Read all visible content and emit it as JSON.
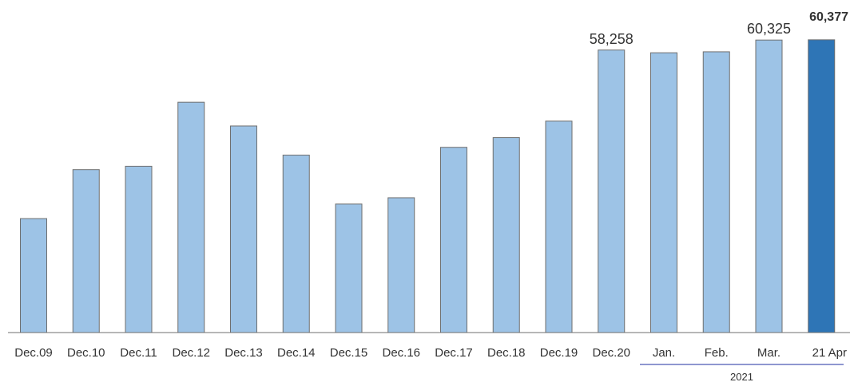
{
  "chart_data": {
    "type": "bar",
    "categories": [
      "Dec.09",
      "Dec.10",
      "Dec.11",
      "Dec.12",
      "Dec.13",
      "Dec.14",
      "Dec.15",
      "Dec.16",
      "Dec.17",
      "Dec.18",
      "Dec.19",
      "Dec.20",
      "Jan.",
      "Feb.",
      "Mar.",
      "21 Apr"
    ],
    "values": [
      23500,
      33600,
      34300,
      47500,
      42600,
      36600,
      26500,
      27800,
      38200,
      40200,
      43600,
      58258,
      57700,
      57900,
      60325,
      60377
    ],
    "data_labels": [
      "",
      "",
      "",
      "",
      "",
      "",
      "",
      "",
      "",
      "",
      "",
      "58,258",
      "",
      "",
      "60,325",
      "60,377"
    ],
    "highlight_index": 15,
    "group_label": "2021",
    "group_start_index": 12,
    "group_end_index": 15,
    "title": "",
    "xlabel": "",
    "ylabel": "",
    "ylim": [
      0,
      62000
    ],
    "grid": false,
    "colors": {
      "bar": "#9DC3E6",
      "bar_highlight": "#2E75B6",
      "bar_stroke": "#6F6F6F",
      "axis": "#6F6F6F",
      "group_line": "#1F2FA0",
      "text": "#333333"
    }
  }
}
